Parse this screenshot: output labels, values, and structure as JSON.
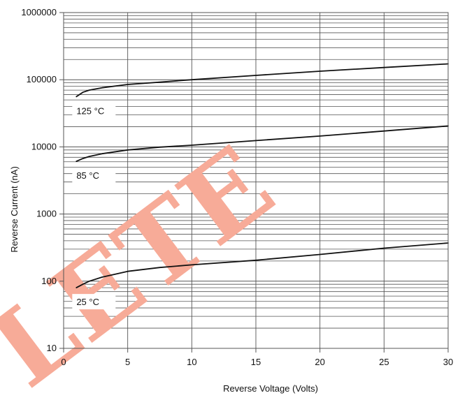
{
  "chart_data": {
    "type": "line",
    "title": "",
    "xlabel": "Reverse Voltage (Volts)",
    "ylabel": "Reverse Current (nA)",
    "xlim": [
      0,
      30
    ],
    "ylim": [
      10,
      1000000
    ],
    "yscale": "log",
    "grid": true,
    "legend": "none",
    "x_ticks": [
      0,
      5,
      10,
      15,
      20,
      25,
      30
    ],
    "x_tick_labels": [
      "0",
      "5",
      "10",
      "15",
      "20",
      "25",
      "30"
    ],
    "y_ticks": [
      10,
      100,
      1000,
      10000,
      100000,
      1000000
    ],
    "y_tick_labels": [
      "10",
      "100",
      "1000",
      "10000",
      "100000",
      "1000000"
    ],
    "series": [
      {
        "name": "125 °C",
        "x": [
          1,
          1.5,
          2,
          3,
          5,
          7.5,
          10,
          15,
          20,
          25,
          30
        ],
        "y": [
          56000,
          65000,
          70000,
          76000,
          85000,
          92000,
          100000,
          116000,
          134000,
          152000,
          172000
        ]
      },
      {
        "name": "85 °C",
        "x": [
          1,
          1.5,
          2,
          3,
          5,
          7.5,
          10,
          15,
          20,
          25,
          30
        ],
        "y": [
          6100,
          6700,
          7200,
          7900,
          9000,
          9900,
          10600,
          12400,
          14500,
          17200,
          20500
        ]
      },
      {
        "name": "25 °C",
        "x": [
          1,
          1.5,
          2,
          3,
          5,
          7.5,
          10,
          15,
          20,
          25,
          30
        ],
        "y": [
          80,
          90,
          100,
          115,
          140,
          160,
          175,
          205,
          250,
          310,
          370
        ]
      }
    ]
  },
  "watermark": {
    "text": "LETE",
    "color": "#f7ab98"
  },
  "colors": {
    "curve": "#111111",
    "grid": "#555555",
    "axis": "#555555"
  }
}
